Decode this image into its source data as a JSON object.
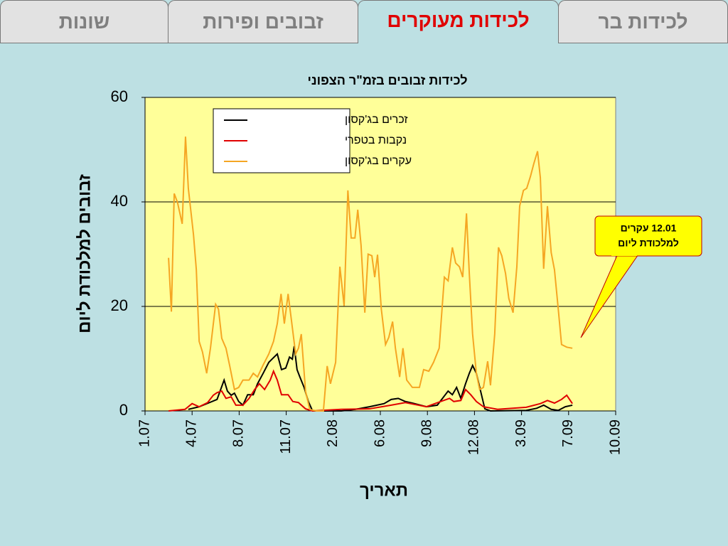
{
  "tabs": [
    "שונות",
    "זבובים ופירות",
    "לכידות מעוקרים",
    "לכידות בר"
  ],
  "callout": {
    "lines": [
      "12.01 עקרים",
      "למלכודת ליום"
    ]
  },
  "chart_data": {
    "type": "line",
    "title": "לכידות זבובים בזמ\"ר הצפוני",
    "xlabel": "תאריך",
    "ylabel": "זבובים למלכודת ליום",
    "xlim": [
      0,
      10
    ],
    "xticks": [
      {
        "value": 0,
        "label": "1.07"
      },
      {
        "value": 1,
        "label": "4.07"
      },
      {
        "value": 2,
        "label": "8.07"
      },
      {
        "value": 3,
        "label": "11.07"
      },
      {
        "value": 4,
        "label": "2.08"
      },
      {
        "value": 5,
        "label": "6.08"
      },
      {
        "value": 6,
        "label": "9.08"
      },
      {
        "value": 7,
        "label": "12.08"
      },
      {
        "value": 8,
        "label": "3.09"
      },
      {
        "value": 9,
        "label": "7.09"
      },
      {
        "value": 10,
        "label": "10.09"
      }
    ],
    "ylim": [
      0,
      60
    ],
    "yticks": [
      0,
      20,
      40,
      60
    ],
    "grid": true,
    "legend": "upper-left",
    "series": [
      {
        "name": "זכרים בג'קסון",
        "color": "#000000",
        "x": [
          0.92,
          1.15,
          1.37,
          1.53,
          1.68,
          1.75,
          1.83,
          1.9,
          1.99,
          2.08,
          2.18,
          2.3,
          2.39,
          2.51,
          2.63,
          2.73,
          2.81,
          2.9,
          2.99,
          3.07,
          3.13,
          3.17,
          3.23,
          3.29,
          3.38,
          3.47,
          3.56,
          4.17,
          4.47,
          4.77,
          5.08,
          5.23,
          5.38,
          5.53,
          5.68,
          5.98,
          6.21,
          6.44,
          6.53,
          6.62,
          6.71,
          6.81,
          6.89,
          6.96,
          7.04,
          7.13,
          7.22,
          7.34,
          8.1,
          8.32,
          8.47,
          8.63,
          8.78,
          8.93,
          9.08
        ],
        "values": [
          0.3,
          0.8,
          1.6,
          2.2,
          5.9,
          3.8,
          3,
          3.4,
          1.8,
          1.1,
          3.1,
          3.1,
          5.2,
          7.2,
          9.3,
          10.2,
          10.9,
          7.9,
          8.2,
          10.3,
          9.9,
          12.4,
          7.9,
          6.5,
          4.5,
          1.8,
          0,
          0,
          0.3,
          0.8,
          1.4,
          2.2,
          2.4,
          1.8,
          1.5,
          0.8,
          1.1,
          3.8,
          3.1,
          4.5,
          2.4,
          5.2,
          7.2,
          8.7,
          7.2,
          3.8,
          0.4,
          0,
          0.1,
          0.5,
          1.1,
          0.3,
          0.1,
          0.8,
          1.1
        ]
      },
      {
        "name": "נקבות בטפרי",
        "color": "#e00000",
        "x": [
          0.5,
          0.85,
          1.0,
          1.15,
          1.33,
          1.45,
          1.53,
          1.63,
          1.72,
          1.83,
          1.93,
          2.08,
          2.21,
          2.33,
          2.43,
          2.54,
          2.66,
          2.73,
          2.81,
          2.9,
          3.04,
          3.14,
          3.26,
          3.41,
          3.56,
          4.17,
          4.77,
          5.23,
          5.53,
          5.98,
          6.28,
          6.47,
          6.56,
          6.71,
          6.81,
          6.92,
          7.04,
          7.19,
          7.49,
          8.1,
          8.4,
          8.55,
          8.7,
          8.85,
          8.96,
          9.08
        ],
        "values": [
          0,
          0.3,
          1.4,
          0.8,
          1.6,
          3,
          3.5,
          3.8,
          2.4,
          2.7,
          1.1,
          1.1,
          2.4,
          4.1,
          5.2,
          4.1,
          5.9,
          7.6,
          5.9,
          3.1,
          3.1,
          1.8,
          1.6,
          0.4,
          0,
          0.3,
          0.4,
          1.1,
          1.6,
          0.8,
          1.8,
          2.4,
          1.8,
          2,
          4.1,
          3.1,
          1.8,
          0.8,
          0.3,
          0.7,
          1.4,
          2,
          1.5,
          2.2,
          3,
          1.4
        ]
      },
      {
        "name": "עקרים בג'קסון",
        "color": "#f5a623",
        "x": [
          0.5,
          0.56,
          0.62,
          0.69,
          0.79,
          0.86,
          0.92,
          1.03,
          1.09,
          1.15,
          1.22,
          1.31,
          1.39,
          1.5,
          1.56,
          1.63,
          1.72,
          1.8,
          1.9,
          1.99,
          2.08,
          2.21,
          2.3,
          2.39,
          2.51,
          2.63,
          2.73,
          2.81,
          2.89,
          2.96,
          3.04,
          3.11,
          3.2,
          3.26,
          3.32,
          3.41,
          3.5,
          3.64,
          3.79,
          3.87,
          3.94,
          4.05,
          4.14,
          4.23,
          4.31,
          4.38,
          4.46,
          4.52,
          4.59,
          4.67,
          4.74,
          4.82,
          4.88,
          4.94,
          5.02,
          5.11,
          5.18,
          5.26,
          5.32,
          5.41,
          5.48,
          5.56,
          5.68,
          5.83,
          5.92,
          6.03,
          6.13,
          6.25,
          6.36,
          6.44,
          6.53,
          6.6,
          6.68,
          6.75,
          6.83,
          6.89,
          6.96,
          7.04,
          7.11,
          7.19,
          7.28,
          7.34,
          7.43,
          7.51,
          7.58,
          7.66,
          7.73,
          7.82,
          7.9,
          7.96,
          8.04,
          8.11,
          8.19,
          8.26,
          8.34,
          8.4,
          8.47,
          8.55,
          8.63,
          8.7,
          8.78,
          8.85,
          8.96,
          9.08
        ],
        "values": [
          29.3,
          19,
          41.6,
          39.9,
          35.8,
          52.5,
          42.6,
          33.7,
          27,
          13.3,
          11.3,
          7.2,
          12,
          20.4,
          19.5,
          13.9,
          12,
          8.6,
          4.1,
          4.5,
          5.9,
          5.9,
          7.2,
          6.5,
          8.8,
          10.9,
          13.3,
          16.7,
          22.4,
          16.7,
          22.4,
          17.4,
          10.9,
          12,
          14.7,
          3.8,
          0.3,
          0,
          0,
          8.6,
          5.2,
          9.3,
          27.6,
          20.1,
          42.2,
          33.1,
          33.1,
          38.5,
          31.7,
          18.8,
          30,
          29.7,
          25.6,
          29.9,
          19.5,
          12.7,
          14.1,
          17.1,
          12,
          6.5,
          12,
          5.9,
          4.5,
          4.5,
          7.9,
          7.6,
          9.3,
          12,
          25.6,
          24.9,
          31.3,
          28.3,
          27.6,
          25.6,
          37.8,
          26.3,
          14.7,
          7.2,
          4.1,
          4.5,
          9.5,
          4.9,
          14.7,
          31.3,
          29.7,
          26.3,
          21.5,
          18.8,
          27.6,
          39.2,
          42.2,
          42.6,
          44.9,
          47.3,
          49.7,
          44.6,
          27.2,
          39.2,
          30.3,
          27,
          19.5,
          12.7,
          12.2,
          12
        ]
      }
    ]
  }
}
